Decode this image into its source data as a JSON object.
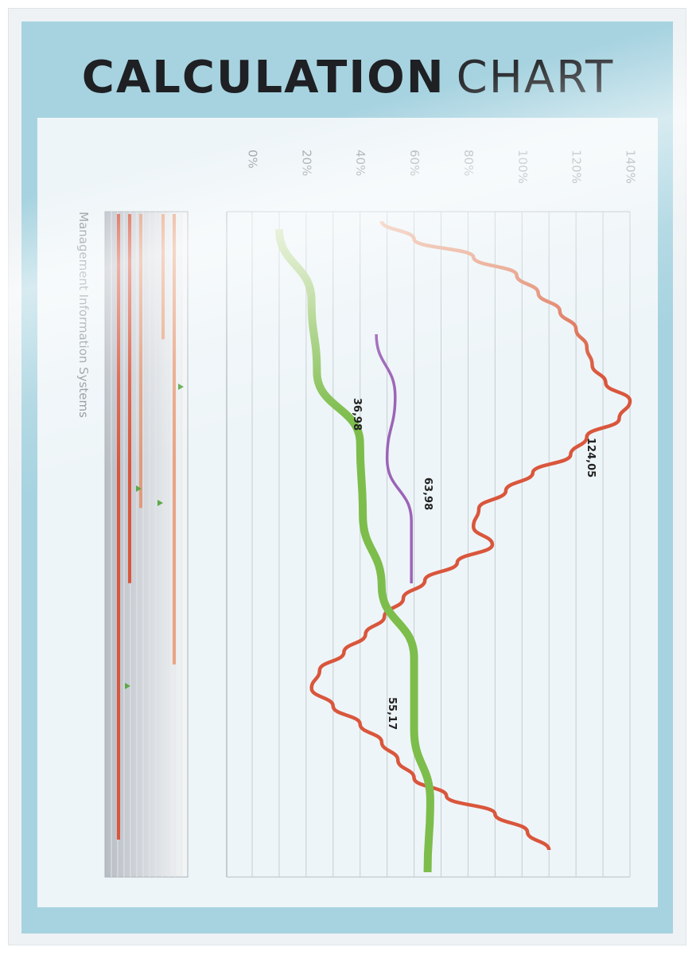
{
  "chart_data": {
    "type": "line",
    "title": "CALCULATION CHART",
    "title_parts": {
      "bold": "CALCULATION",
      "light": "CHART"
    },
    "orientation": "rotated-90-clockwise",
    "value_axis": {
      "ticks": [
        "0%",
        "20%",
        "40%",
        "60%",
        "80%",
        "100%",
        "120%",
        "140%"
      ],
      "range": [
        0,
        140
      ],
      "gridlines": true
    },
    "side_label": "Management Information Systems",
    "series": [
      {
        "color": "#d9563c",
        "color_start": "#eec0a8",
        "stroke": "thin",
        "values_along_path": [
          48,
          60,
          82,
          98,
          106,
          114,
          120,
          124,
          126,
          131,
          140,
          136,
          124,
          118,
          104,
          94,
          84,
          82,
          89,
          76,
          64,
          56,
          49,
          42,
          34,
          25,
          22,
          30,
          40,
          48,
          54,
          60,
          72,
          90,
          102,
          110
        ]
      },
      {
        "color": "#7dbd4c",
        "color_start": "#cfe3b4",
        "stroke": "thick",
        "values_along_path": [
          10,
          22,
          24,
          40,
          41,
          48,
          60,
          60,
          66,
          65
        ]
      },
      {
        "color": "#9c63b8",
        "stroke": "thin",
        "values_along_path": [
          46,
          53,
          50,
          59,
          59
        ]
      }
    ],
    "data_labels": [
      "124,05",
      "36,98",
      "63,98",
      "55,17"
    ],
    "side_bars": [
      {
        "color": "#e9a584",
        "extent": 0.72
      },
      {
        "color": "#e9a584",
        "extent": 0.2
      },
      {
        "color": "#e19a7a",
        "extent": 0.47
      },
      {
        "color": "#d9563c",
        "extent": 0.59
      },
      {
        "color": "#d9563c",
        "extent": 1.0
      }
    ],
    "markers_color": "#5ea84a"
  }
}
